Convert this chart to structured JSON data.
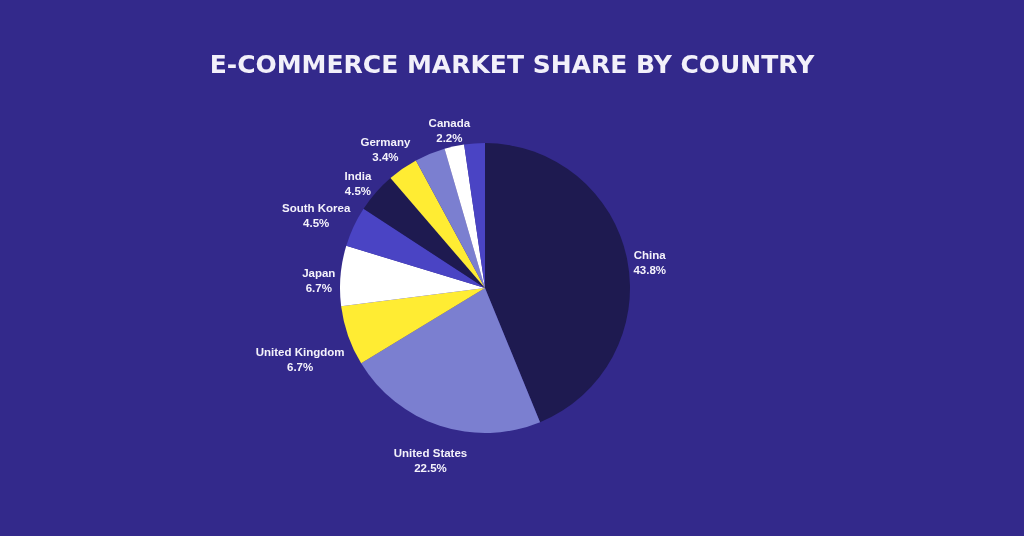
{
  "chart_data": {
    "type": "pie",
    "title": "E-COMMERCE MARKET SHARE BY COUNTRY",
    "categories": [
      "China",
      "United States",
      "United Kingdom",
      "Japan",
      "South Korea",
      "India",
      "Germany",
      null,
      "Canada",
      null
    ],
    "values": [
      43.8,
      22.5,
      6.7,
      6.7,
      4.5,
      4.5,
      3.4,
      3.4,
      2.2,
      2.3
    ],
    "colors": [
      "#1e1a50",
      "#7b7fd0",
      "#ffec33",
      "#ffffff",
      "#4a44c4",
      "#1e1a50",
      "#ffec33",
      "#7b7fd0",
      "#ffffff",
      "#4a44c4"
    ],
    "value_labels": [
      "43.8%",
      "22.5%",
      "6.7%",
      "6.7%",
      "4.5%",
      "4.5%",
      "3.4%",
      null,
      "2.2%",
      null
    ]
  }
}
